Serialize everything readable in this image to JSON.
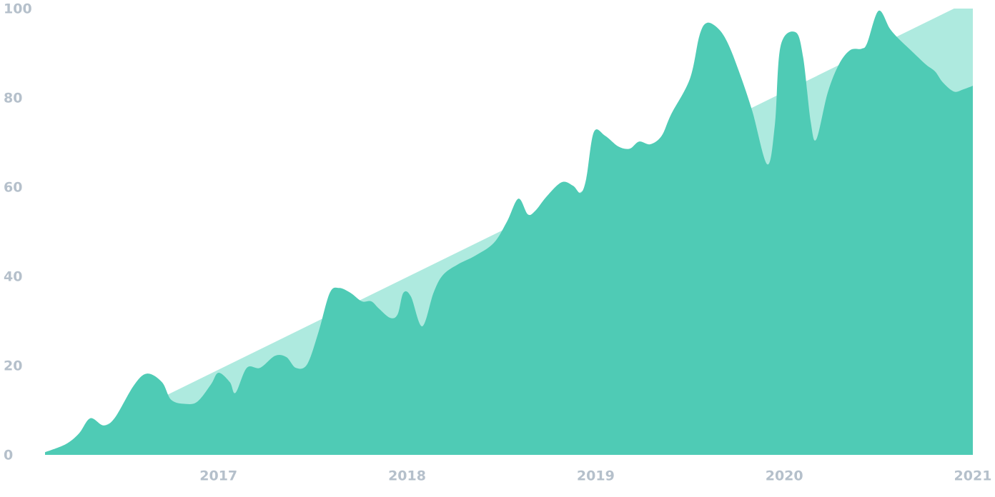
{
  "chart_data": {
    "type": "area",
    "xlim": [
      2016.08,
      2021
    ],
    "xticks": [
      2017,
      2018,
      2019,
      2020,
      2021
    ],
    "ylim": [
      0,
      100
    ],
    "yticks": [
      0,
      20,
      40,
      60,
      80,
      100
    ],
    "grid": false,
    "series": [
      {
        "color": "#aeeadf",
        "x": [
          2016.08,
          2020.9,
          2021
        ],
        "values": [
          0,
          100,
          100
        ]
      },
      {
        "color": "#4fcbb5",
        "x": [
          2016.08,
          2016.19,
          2016.26,
          2016.32,
          2016.39,
          2016.45,
          2016.55,
          2016.62,
          2016.7,
          2016.75,
          2016.83,
          2016.89,
          2016.96,
          2017.0,
          2017.06,
          2017.09,
          2017.15,
          2017.22,
          2017.3,
          2017.36,
          2017.41,
          2017.47,
          2017.53,
          2017.59,
          2017.64,
          2017.7,
          2017.76,
          2017.81,
          2017.85,
          2017.91,
          2017.95,
          2017.98,
          2018.02,
          2018.08,
          2018.14,
          2018.19,
          2018.27,
          2018.36,
          2018.46,
          2018.53,
          2018.59,
          2018.64,
          2018.68,
          2018.74,
          2018.82,
          2018.88,
          2018.92,
          2018.95,
          2018.99,
          2019.05,
          2019.12,
          2019.18,
          2019.23,
          2019.29,
          2019.35,
          2019.4,
          2019.5,
          2019.55,
          2019.59,
          2019.65,
          2019.7,
          2019.76,
          2019.83,
          2019.91,
          2019.95,
          2019.98,
          2020.06,
          2020.1,
          2020.14,
          2020.17,
          2020.23,
          2020.29,
          2020.35,
          2020.41,
          2020.44,
          2020.5,
          2020.56,
          2020.61,
          2020.67,
          2020.75,
          2020.8,
          2020.84,
          2020.9,
          2020.95,
          2021.0
        ],
        "values": [
          0.6,
          2.4,
          4.8,
          8.2,
          6.6,
          8.3,
          15.5,
          18.2,
          16.3,
          12.3,
          11.4,
          12,
          15.8,
          18.4,
          16.3,
          13.9,
          19.5,
          19.5,
          22.2,
          21.9,
          19.5,
          20.3,
          27.5,
          36.3,
          37.4,
          36.3,
          34.4,
          34.4,
          32.8,
          30.7,
          31.5,
          36.3,
          35.5,
          28.8,
          36.3,
          40.3,
          42.7,
          44.6,
          47.5,
          52.3,
          57.4,
          53.9,
          54.7,
          57.9,
          61.1,
          60.3,
          58.7,
          61.9,
          72.3,
          71.5,
          69.1,
          68.6,
          70.2,
          69.6,
          71.5,
          76.3,
          84.3,
          93.9,
          96.8,
          95.5,
          92.3,
          85.9,
          77.1,
          65.1,
          73.9,
          91.5,
          94.7,
          89.1,
          74.7,
          70.7,
          81.1,
          87.5,
          90.7,
          91,
          92.3,
          99.5,
          95.5,
          93.1,
          90.7,
          87.5,
          85.9,
          83.5,
          81.4,
          81.9,
          82.7
        ]
      }
    ]
  }
}
